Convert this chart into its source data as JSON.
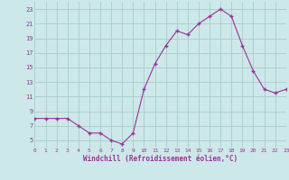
{
  "x": [
    0,
    1,
    2,
    3,
    4,
    5,
    6,
    7,
    8,
    9,
    10,
    11,
    12,
    13,
    14,
    15,
    16,
    17,
    18,
    19,
    20,
    21,
    22,
    23
  ],
  "y": [
    8,
    8,
    8,
    8,
    7,
    6,
    6,
    5,
    4.5,
    6,
    12,
    15.5,
    18,
    20,
    19.5,
    21,
    22,
    23,
    22,
    18,
    14.5,
    12,
    11.5,
    12
  ],
  "line_color": "#993399",
  "marker": "+",
  "marker_size": 3,
  "marker_color": "#993399",
  "bg_color": "#cce8e8",
  "grid_color": "#aacccc",
  "xlabel": "Windchill (Refroidissement éolien,°C)",
  "xlabel_color": "#993399",
  "tick_color": "#993399",
  "ylim": [
    4,
    24
  ],
  "xlim": [
    0,
    23
  ],
  "yticks": [
    5,
    7,
    9,
    11,
    13,
    15,
    17,
    19,
    21,
    23
  ],
  "xticks": [
    0,
    1,
    2,
    3,
    4,
    5,
    6,
    7,
    8,
    9,
    10,
    11,
    12,
    13,
    14,
    15,
    16,
    17,
    18,
    19,
    20,
    21,
    22,
    23
  ]
}
